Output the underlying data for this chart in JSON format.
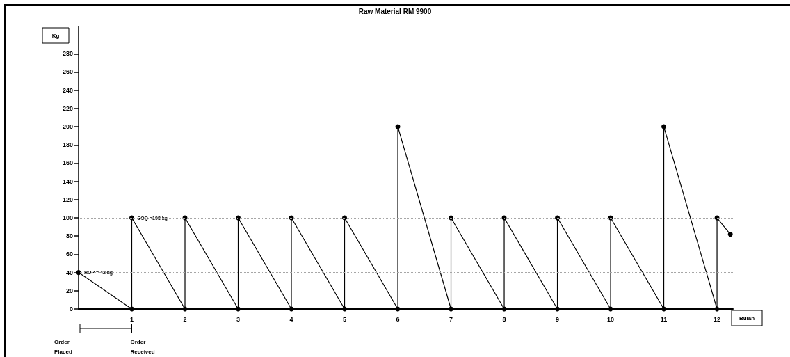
{
  "chart_data": {
    "type": "line",
    "title": "Raw Material RM 9900",
    "xlabel": "Bulan",
    "ylabel": "Kg",
    "series": [
      {
        "color": "#000000",
        "x": [
          0,
          1,
          1,
          2,
          2,
          3,
          3,
          4,
          4,
          5,
          5,
          6,
          6,
          7,
          7,
          8,
          8,
          9,
          9,
          10,
          10,
          11,
          11,
          12,
          12,
          12.25
        ],
        "values": [
          40,
          0,
          100,
          0,
          100,
          0,
          100,
          0,
          100,
          0,
          100,
          0,
          200,
          0,
          100,
          0,
          100,
          0,
          100,
          0,
          100,
          0,
          200,
          0,
          100,
          82
        ]
      }
    ],
    "xlim": [
      0,
      12.3
    ],
    "xticks": [
      1,
      2,
      3,
      4,
      5,
      6,
      7,
      8,
      9,
      10,
      11,
      12
    ],
    "ylim": [
      0,
      310
    ],
    "yticks": [
      0,
      20,
      40,
      60,
      80,
      100,
      120,
      140,
      160,
      180,
      200,
      220,
      240,
      260,
      280
    ],
    "marker": "circle",
    "line_style": "solid",
    "grid": false,
    "ref_lines": [
      {
        "axis": "y",
        "value": 200,
        "color": "#a6a6a6",
        "line_style": "dotted"
      },
      {
        "axis": "y",
        "value": 100,
        "color": "#a6a6a6",
        "line_style": "dotted"
      },
      {
        "axis": "y",
        "value": 40,
        "color": "#a6a6a6",
        "line_style": "dotted"
      }
    ],
    "annotations": [
      {
        "text": "EOQ =108 kg",
        "x": 1,
        "y": 100
      },
      {
        "text": "ROP = 42 kg",
        "x": 0,
        "y": 40
      },
      "Order Placed",
      "Order Received"
    ]
  }
}
